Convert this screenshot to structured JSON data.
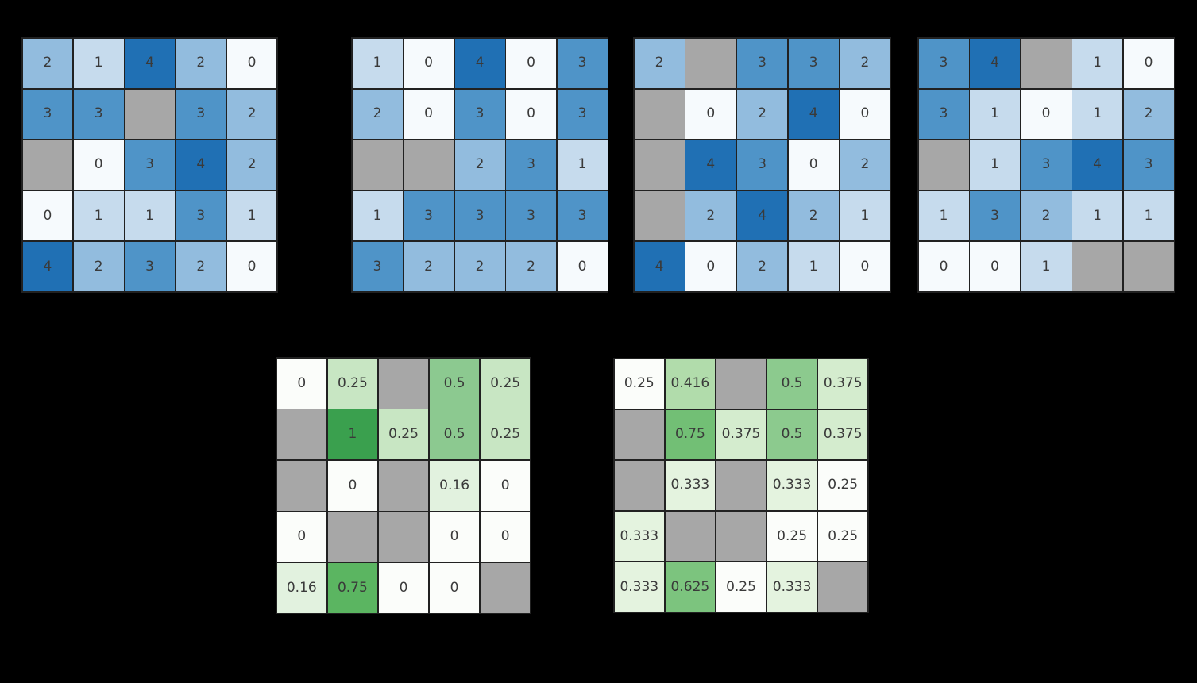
{
  "figure": {
    "background_color": "#000000",
    "grid_line_color": "#212121",
    "nan_cell_color": "#a7a7a7",
    "annotation_text_color": "#3a3a3a"
  },
  "chart_data": [
    {
      "type": "heatmap",
      "name": "blue-count-matrix-1",
      "colormap": "Blues",
      "rows": 5,
      "cols": 5,
      "value_range": [
        0,
        4
      ],
      "missing_cells_shown_gray": true,
      "color_scale": {
        "0": "#f6fafd",
        "1": "#c6dbed",
        "2": "#92bcde",
        "3": "#4f94c8",
        "4": "#2070b4"
      },
      "values": [
        [
          "2",
          "1",
          "4",
          "2",
          "0"
        ],
        [
          "3",
          "3",
          null,
          "3",
          "2"
        ],
        [
          null,
          "0",
          "3",
          "4",
          "2"
        ],
        [
          "0",
          "1",
          "1",
          "3",
          "1"
        ],
        [
          "4",
          "2",
          "3",
          "2",
          "0"
        ]
      ]
    },
    {
      "type": "heatmap",
      "name": "blue-count-matrix-2",
      "colormap": "Blues",
      "rows": 5,
      "cols": 5,
      "value_range": [
        0,
        4
      ],
      "missing_cells_shown_gray": true,
      "color_scale": {
        "0": "#f6fafd",
        "1": "#c6dbed",
        "2": "#92bcde",
        "3": "#4f94c8",
        "4": "#2070b4"
      },
      "values": [
        [
          "1",
          "0",
          "4",
          "0",
          "3"
        ],
        [
          "2",
          "0",
          "3",
          "0",
          "3"
        ],
        [
          null,
          null,
          "2",
          "3",
          "1"
        ],
        [
          "1",
          "3",
          "3",
          "3",
          "3"
        ],
        [
          "3",
          "2",
          "2",
          "2",
          "0"
        ]
      ]
    },
    {
      "type": "heatmap",
      "name": "blue-count-matrix-3",
      "colormap": "Blues",
      "rows": 5,
      "cols": 5,
      "value_range": [
        0,
        4
      ],
      "missing_cells_shown_gray": true,
      "color_scale": {
        "0": "#f6fafd",
        "1": "#c6dbed",
        "2": "#92bcde",
        "3": "#4f94c8",
        "4": "#2070b4"
      },
      "values": [
        [
          "2",
          null,
          "3",
          "3",
          "2"
        ],
        [
          null,
          "0",
          "2",
          "4",
          "0"
        ],
        [
          null,
          "4",
          "3",
          "0",
          "2"
        ],
        [
          null,
          "2",
          "4",
          "2",
          "1"
        ],
        [
          "4",
          "0",
          "2",
          "1",
          "0"
        ]
      ]
    },
    {
      "type": "heatmap",
      "name": "blue-count-matrix-4",
      "colormap": "Blues",
      "rows": 5,
      "cols": 5,
      "value_range": [
        0,
        4
      ],
      "missing_cells_shown_gray": true,
      "color_scale": {
        "0": "#f6fafd",
        "1": "#c6dbed",
        "2": "#92bcde",
        "3": "#4f94c8",
        "4": "#2070b4"
      },
      "values": [
        [
          "3",
          "4",
          null,
          "1",
          "0"
        ],
        [
          "3",
          "1",
          "0",
          "1",
          "2"
        ],
        [
          null,
          "1",
          "3",
          "4",
          "3"
        ],
        [
          "1",
          "3",
          "2",
          "1",
          "1"
        ],
        [
          "0",
          "0",
          "1",
          null,
          null
        ]
      ]
    },
    {
      "type": "heatmap",
      "name": "green-ratio-matrix-1",
      "colormap": "Greens",
      "rows": 5,
      "cols": 5,
      "value_range": [
        0,
        1
      ],
      "missing_cells_shown_gray": true,
      "color_scale": {
        "0": "#fbfdfa",
        "0.16": "#e2f2df",
        "0.25": "#c8e6c3",
        "0.5": "#8cc990",
        "0.75": "#5bb561",
        "1": "#3aa04e"
      },
      "values": [
        [
          "0",
          "0.25",
          null,
          "0.5",
          "0.25"
        ],
        [
          null,
          "1",
          "0.25",
          "0.5",
          "0.25"
        ],
        [
          null,
          "0",
          null,
          "0.16",
          "0"
        ],
        [
          "0",
          null,
          null,
          "0",
          "0"
        ],
        [
          "0.16",
          "0.75",
          "0",
          "0",
          null
        ]
      ]
    },
    {
      "type": "heatmap",
      "name": "green-ratio-matrix-2",
      "colormap": "Greens",
      "rows": 5,
      "cols": 5,
      "value_range": [
        0.25,
        0.75
      ],
      "missing_cells_shown_gray": true,
      "color_scale": {
        "0.25": "#fbfdfa",
        "0.333": "#e4f3df",
        "0.375": "#d4ecce",
        "0.416": "#b1dcab",
        "0.5": "#8cca8e",
        "0.625": "#7cc47e",
        "0.75": "#72bf75"
      },
      "values": [
        [
          "0.25",
          "0.416",
          null,
          "0.5",
          "0.375"
        ],
        [
          null,
          "0.75",
          "0.375",
          "0.5",
          "0.375"
        ],
        [
          null,
          "0.333",
          null,
          "0.333",
          "0.25"
        ],
        [
          "0.333",
          null,
          null,
          "0.25",
          "0.25"
        ],
        [
          "0.333",
          "0.625",
          "0.25",
          "0.333",
          null
        ]
      ]
    }
  ]
}
